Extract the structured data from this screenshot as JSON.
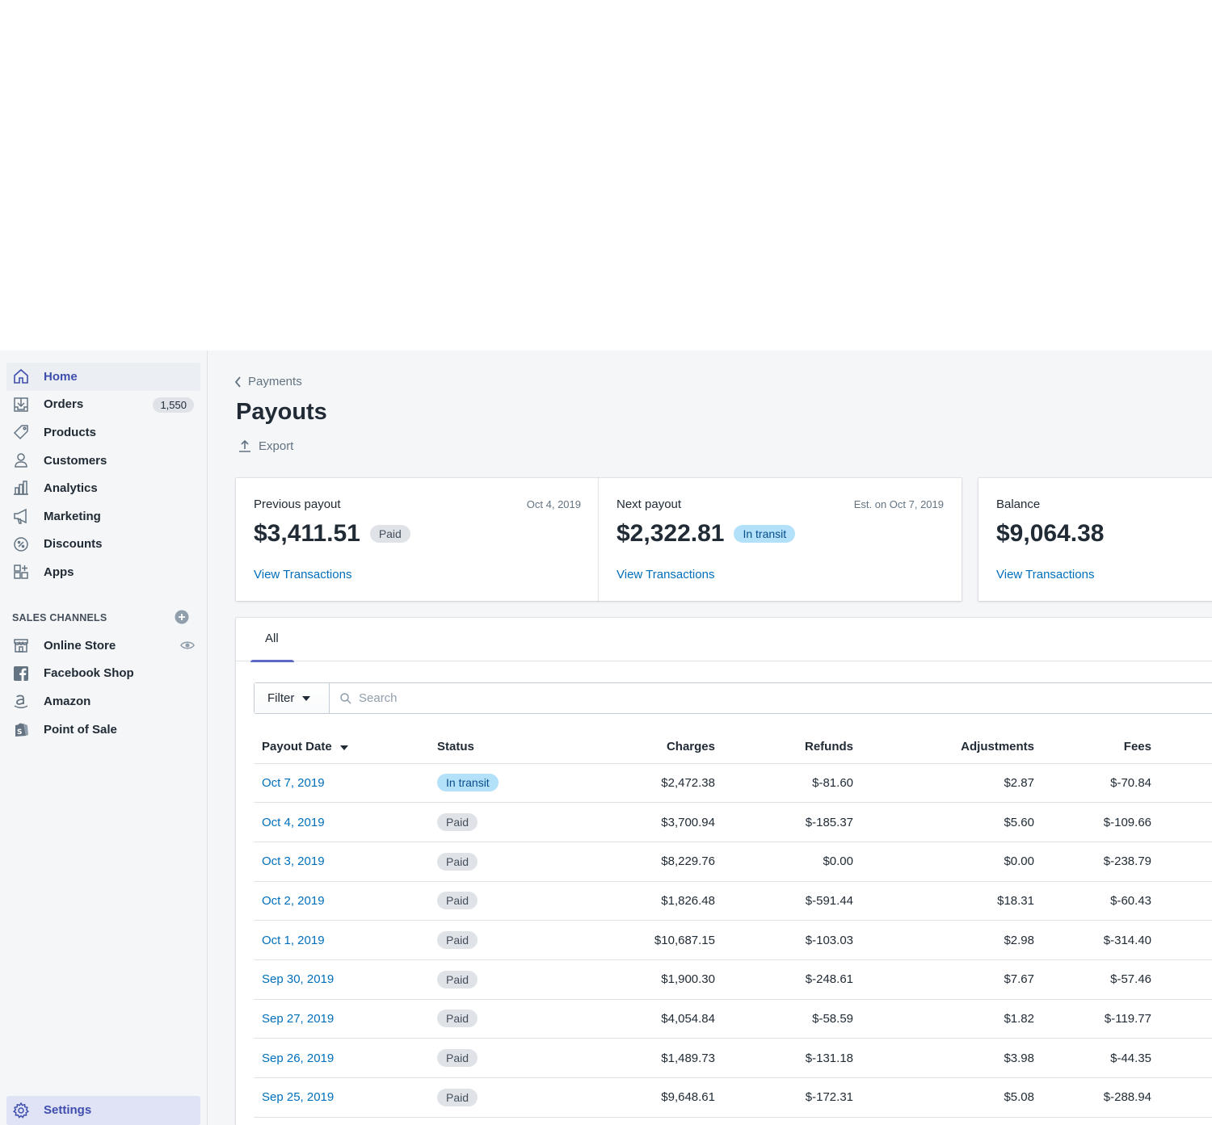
{
  "sidebar": {
    "items": [
      {
        "label": "Home",
        "icon": "home-icon"
      },
      {
        "label": "Orders",
        "icon": "orders-icon",
        "count": "1,550"
      },
      {
        "label": "Products",
        "icon": "tag-icon"
      },
      {
        "label": "Customers",
        "icon": "customer-icon"
      },
      {
        "label": "Analytics",
        "icon": "analytics-icon"
      },
      {
        "label": "Marketing",
        "icon": "megaphone-icon"
      },
      {
        "label": "Discounts",
        "icon": "discount-icon"
      },
      {
        "label": "Apps",
        "icon": "apps-icon"
      }
    ],
    "channels_title": "SALES CHANNELS",
    "channels": [
      {
        "label": "Online Store",
        "icon": "store-icon"
      },
      {
        "label": "Facebook Shop",
        "icon": "facebook-icon"
      },
      {
        "label": "Amazon",
        "icon": "amazon-icon"
      },
      {
        "label": "Point of Sale",
        "icon": "pos-icon"
      }
    ],
    "settings_label": "Settings"
  },
  "header": {
    "breadcrumb": "Payments",
    "title": "Payouts",
    "export_label": "Export"
  },
  "cards": {
    "previous": {
      "label": "Previous payout",
      "date": "Oct 4, 2019",
      "amount": "$3,411.51",
      "status": "Paid",
      "link": "View Transactions"
    },
    "next": {
      "label": "Next payout",
      "date": "Est. on Oct 7, 2019",
      "amount": "$2,322.81",
      "status": "In transit",
      "link": "View Transactions"
    },
    "balance": {
      "label": "Balance",
      "amount": "$9,064.38",
      "link": "View Transactions"
    }
  },
  "tabs": {
    "all": "All"
  },
  "filter": {
    "button_label": "Filter",
    "search_placeholder": "Search"
  },
  "table": {
    "columns": {
      "date": "Payout Date",
      "status": "Status",
      "charges": "Charges",
      "refunds": "Refunds",
      "adjustments": "Adjustments",
      "fees": "Fees"
    },
    "rows": [
      {
        "date": "Oct 7, 2019",
        "status": "In transit",
        "charges": "$2,472.38",
        "refunds": "$-81.60",
        "adjustments": "$2.87",
        "fees": "$-70.84"
      },
      {
        "date": "Oct 4, 2019",
        "status": "Paid",
        "charges": "$3,700.94",
        "refunds": "$-185.37",
        "adjustments": "$5.60",
        "fees": "$-109.66"
      },
      {
        "date": "Oct 3, 2019",
        "status": "Paid",
        "charges": "$8,229.76",
        "refunds": "$0.00",
        "adjustments": "$0.00",
        "fees": "$-238.79"
      },
      {
        "date": "Oct 2, 2019",
        "status": "Paid",
        "charges": "$1,826.48",
        "refunds": "$-591.44",
        "adjustments": "$18.31",
        "fees": "$-60.43"
      },
      {
        "date": "Oct 1, 2019",
        "status": "Paid",
        "charges": "$10,687.15",
        "refunds": "$-103.03",
        "adjustments": "$2.98",
        "fees": "$-314.40"
      },
      {
        "date": "Sep 30, 2019",
        "status": "Paid",
        "charges": "$1,900.30",
        "refunds": "$-248.61",
        "adjustments": "$7.67",
        "fees": "$-57.46"
      },
      {
        "date": "Sep 27, 2019",
        "status": "Paid",
        "charges": "$4,054.84",
        "refunds": "$-58.59",
        "adjustments": "$1.82",
        "fees": "$-119.77"
      },
      {
        "date": "Sep 26, 2019",
        "status": "Paid",
        "charges": "$1,489.73",
        "refunds": "$-131.18",
        "adjustments": "$3.98",
        "fees": "$-44.35"
      },
      {
        "date": "Sep 25, 2019",
        "status": "Paid",
        "charges": "$9,648.61",
        "refunds": "$-172.31",
        "adjustments": "$5.08",
        "fees": "$-288.94"
      }
    ]
  },
  "colors": {
    "accent": "#5c6ac4",
    "link": "#006fbb",
    "transit": "#b4e1fa",
    "paid": "#dfe3e8"
  }
}
